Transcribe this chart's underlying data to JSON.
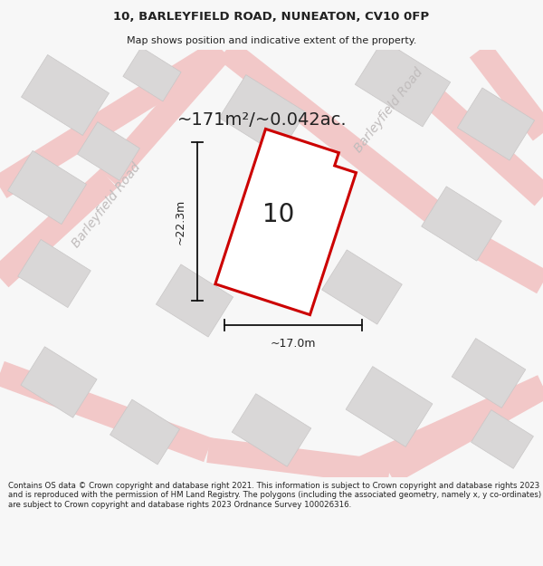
{
  "title_line1": "10, BARLEYFIELD ROAD, NUNEATON, CV10 0FP",
  "title_line2": "Map shows position and indicative extent of the property.",
  "area_text": "~171m²/~0.042ac.",
  "label_10": "10",
  "dim_width": "~17.0m",
  "dim_height": "~22.3m",
  "road_label_left": "Barleyfield Road",
  "road_label_right": "Barleyfield Road",
  "footer_text": "Contains OS data © Crown copyright and database right 2021. This information is subject to Crown copyright and database rights 2023 and is reproduced with the permission of HM Land Registry. The polygons (including the associated geometry, namely x, y co-ordinates) are subject to Crown copyright and database rights 2023 Ordnance Survey 100026316.",
  "bg_color": "#f7f7f7",
  "map_bg": "#eeecec",
  "road_color": "#f2c8c8",
  "building_color": "#d9d7d7",
  "building_edge": "#c8c6c6",
  "plot_outline_color": "#cc0000",
  "plot_fill_color": "#ffffff",
  "dim_line_color": "#111111",
  "text_color": "#222222",
  "road_text_color": "#c0bcbc"
}
